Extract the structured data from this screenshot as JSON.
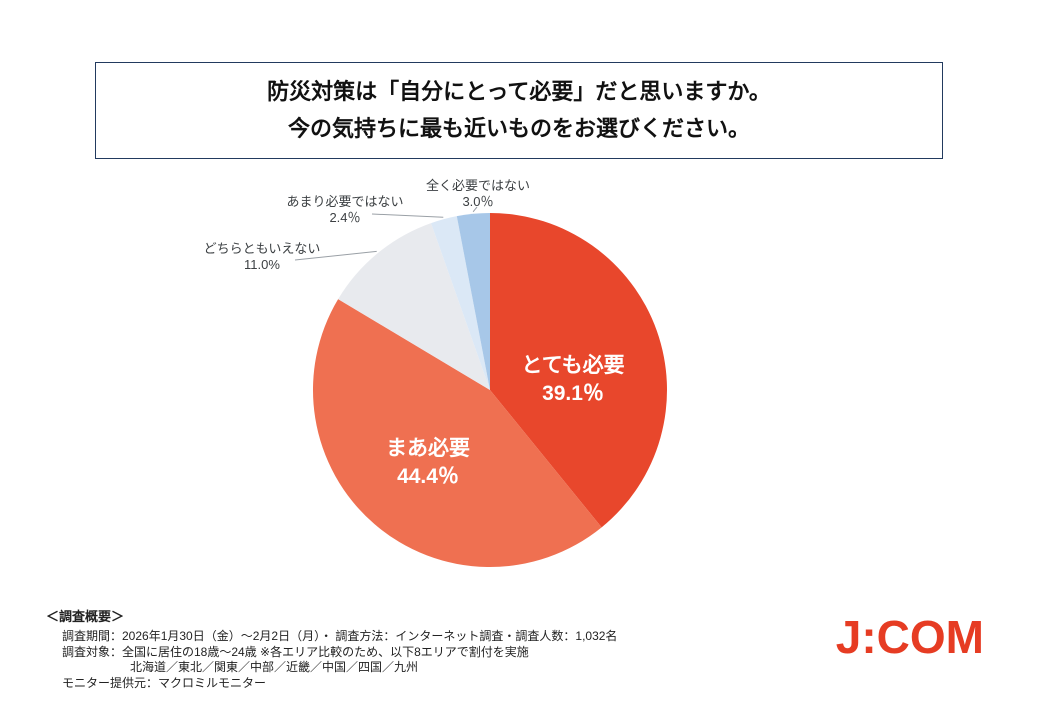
{
  "title": {
    "line1": "防災対策は「自分にとって必要」だと思いますか。",
    "line2": "今の気持ちに最も近いものをお選びください。"
  },
  "chart_data": {
    "type": "pie",
    "unit": "%",
    "start_angle_deg": 0,
    "direction": "clockwise",
    "legend_position": "none",
    "slices": [
      {
        "label": "とても必要",
        "value": 39.1,
        "pct_label": "39.1％",
        "color": "#e8472c",
        "label_position": "inside"
      },
      {
        "label": "まあ必要",
        "value": 44.4,
        "pct_label": "44.4％",
        "color": "#ef7051",
        "label_position": "inside"
      },
      {
        "label": "どちらともいえない",
        "value": 11.0,
        "pct_label": "11.0%",
        "color": "#e8eaee",
        "label_position": "outside"
      },
      {
        "label": "あまり必要ではない",
        "value": 2.4,
        "pct_label": "2.4％",
        "color": "#dbe8f6",
        "label_position": "outside"
      },
      {
        "label": "全く必要ではない",
        "value": 3.0,
        "pct_label": "3.0％",
        "color": "#a7c7e8",
        "label_position": "outside"
      }
    ]
  },
  "footer": {
    "heading": "＜調査概要＞",
    "lines": [
      "調査期間：2026年1月30日（金）～2月2日（月）・ 調査方法：インターネット調査・調査人数：1,032名",
      "調査対象：全国に居住の18歳～24歳 ※各エリア比較のため、以下8エリアで割付を実施",
      "北海道／東北／関東／中部／近畿／中国／四国／九州",
      "モニター提供元：マクロミルモニター"
    ]
  },
  "logo": {
    "text": "J:COM",
    "color": "#e63c23"
  }
}
